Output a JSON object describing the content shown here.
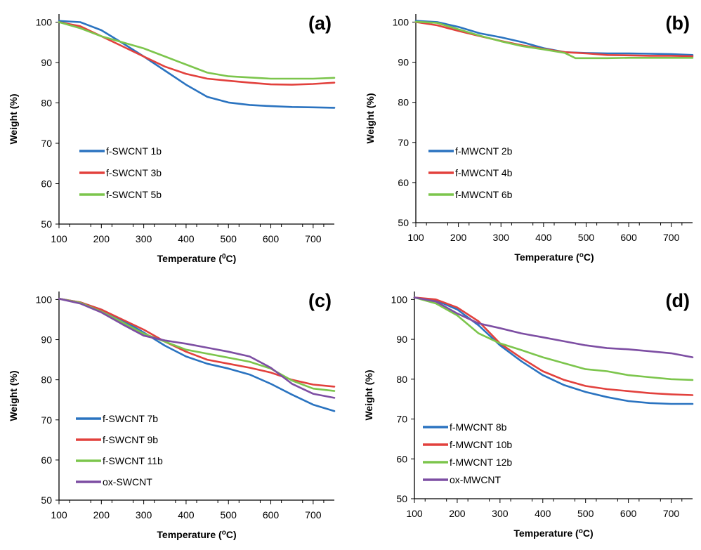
{
  "colors": {
    "blue": "#2a73c0",
    "red": "#e2413d",
    "green": "#7cc54c",
    "purple": "#7d4ea3"
  },
  "chart_data": [
    {
      "type": "line",
      "panel_label": "(a)",
      "xlabel": "Temperature (",
      "xlabel_sup": "0",
      "xlabel_end": "C)",
      "ylabel": "Weight (%)",
      "xlim": [
        100,
        750
      ],
      "ylim": [
        50,
        102
      ],
      "xticks": [
        100,
        200,
        300,
        400,
        500,
        600,
        700
      ],
      "yticks": [
        50,
        60,
        70,
        80,
        90,
        100
      ],
      "grid": false,
      "legend_position": "bottom-left",
      "series": [
        {
          "name": "f-SWCNT 1b",
          "color": "#2a73c0",
          "x": [
            100,
            150,
            200,
            250,
            300,
            350,
            400,
            450,
            500,
            550,
            600,
            650,
            700,
            750
          ],
          "y": [
            100.3,
            100.0,
            98.0,
            94.8,
            91.5,
            88.0,
            84.5,
            81.5,
            80.1,
            79.5,
            79.2,
            79.0,
            78.9,
            78.8
          ]
        },
        {
          "name": "f-SWCNT 3b",
          "color": "#e2413d",
          "x": [
            100,
            150,
            200,
            250,
            300,
            350,
            400,
            450,
            500,
            550,
            600,
            650,
            700,
            750
          ],
          "y": [
            100.0,
            99.0,
            96.5,
            94.0,
            91.5,
            89.0,
            87.2,
            86.0,
            85.5,
            85.0,
            84.6,
            84.5,
            84.7,
            85.0
          ]
        },
        {
          "name": "f-SWCNT 5b",
          "color": "#7cc54c",
          "x": [
            100,
            150,
            200,
            250,
            300,
            350,
            400,
            450,
            500,
            550,
            600,
            650,
            700,
            750
          ],
          "y": [
            100.0,
            98.5,
            96.5,
            95.0,
            93.5,
            91.5,
            89.5,
            87.5,
            86.6,
            86.3,
            86.0,
            86.0,
            86.0,
            86.2
          ]
        }
      ]
    },
    {
      "type": "line",
      "panel_label": "(b)",
      "xlabel": "Temperature (",
      "xlabel_sup": "o",
      "xlabel_end": "C)",
      "ylabel": "Weight (%)",
      "xlim": [
        100,
        750
      ],
      "ylim": [
        50,
        102
      ],
      "xticks": [
        100,
        200,
        300,
        400,
        500,
        600,
        700
      ],
      "yticks": [
        50,
        60,
        70,
        80,
        90,
        100
      ],
      "grid": false,
      "legend_position": "bottom-left",
      "series": [
        {
          "name": "f-MWCNT 2b",
          "color": "#2a73c0",
          "x": [
            100,
            150,
            200,
            250,
            300,
            350,
            400,
            450,
            500,
            550,
            600,
            650,
            700,
            750
          ],
          "y": [
            100.3,
            100.0,
            98.8,
            97.2,
            96.2,
            95.0,
            93.5,
            92.5,
            92.3,
            92.2,
            92.2,
            92.1,
            92.0,
            91.8
          ]
        },
        {
          "name": "f-MWCNT 4b",
          "color": "#e2413d",
          "x": [
            100,
            150,
            200,
            250,
            300,
            350,
            400,
            450,
            500,
            550,
            600,
            650,
            700,
            750
          ],
          "y": [
            100.0,
            99.2,
            97.8,
            96.5,
            95.3,
            94.2,
            93.3,
            92.5,
            92.2,
            91.8,
            91.7,
            91.6,
            91.6,
            91.5
          ]
        },
        {
          "name": "f-MWCNT 6b",
          "color": "#7cc54c",
          "x": [
            100,
            150,
            200,
            250,
            300,
            350,
            400,
            450,
            475,
            500,
            550,
            600,
            650,
            700,
            750
          ],
          "y": [
            100.1,
            99.8,
            98.2,
            96.6,
            95.2,
            94.0,
            93.2,
            92.3,
            91.0,
            91.0,
            91.0,
            91.1,
            91.1,
            91.1,
            91.1
          ]
        }
      ]
    },
    {
      "type": "line",
      "panel_label": "(c)",
      "xlabel": "Temperature (",
      "xlabel_sup": "o",
      "xlabel_end": "C)",
      "ylabel": "Weight (%)",
      "xlim": [
        100,
        750
      ],
      "ylim": [
        50,
        102
      ],
      "xticks": [
        100,
        200,
        300,
        400,
        500,
        600,
        700
      ],
      "yticks": [
        50,
        60,
        70,
        80,
        90,
        100
      ],
      "grid": false,
      "legend_position": "bottom-left",
      "series": [
        {
          "name": "f-SWCNT 7b",
          "color": "#2a73c0",
          "x": [
            100,
            150,
            200,
            250,
            300,
            350,
            400,
            450,
            500,
            550,
            600,
            650,
            700,
            750
          ],
          "y": [
            100.2,
            99.3,
            97.5,
            94.8,
            91.8,
            88.5,
            85.8,
            84.0,
            82.8,
            81.3,
            79.0,
            76.3,
            73.8,
            72.2
          ]
        },
        {
          "name": "f-SWCNT 9b",
          "color": "#e2413d",
          "x": [
            100,
            150,
            200,
            250,
            300,
            350,
            400,
            450,
            500,
            550,
            600,
            650,
            700,
            750
          ],
          "y": [
            100.2,
            99.3,
            97.5,
            95.0,
            92.5,
            89.5,
            87.0,
            85.0,
            84.0,
            83.0,
            81.8,
            80.0,
            78.8,
            78.3
          ]
        },
        {
          "name": "f-SWCNT 11b",
          "color": "#7cc54c",
          "x": [
            100,
            150,
            200,
            250,
            300,
            350,
            400,
            450,
            500,
            550,
            600,
            650,
            700,
            750
          ],
          "y": [
            100.2,
            99.2,
            97.0,
            94.3,
            91.5,
            89.5,
            87.5,
            86.5,
            85.5,
            84.5,
            82.8,
            79.8,
            77.8,
            77.2
          ]
        },
        {
          "name": "ox-SWCNT",
          "color": "#7d4ea3",
          "x": [
            100,
            150,
            200,
            250,
            300,
            350,
            400,
            450,
            500,
            550,
            600,
            650,
            700,
            750
          ],
          "y": [
            100.2,
            99.0,
            96.8,
            93.8,
            91.0,
            89.8,
            89.0,
            88.0,
            87.0,
            85.8,
            83.0,
            79.0,
            76.5,
            75.5
          ]
        }
      ]
    },
    {
      "type": "line",
      "panel_label": "(d)",
      "xlabel": "Temperature (",
      "xlabel_sup": "o",
      "xlabel_end": "C)",
      "ylabel": "Weight (%)",
      "xlim": [
        100,
        750
      ],
      "ylim": [
        50,
        102
      ],
      "xticks": [
        100,
        200,
        300,
        400,
        500,
        600,
        700
      ],
      "yticks": [
        50,
        60,
        70,
        80,
        90,
        100
      ],
      "grid": false,
      "legend_position": "bottom-left",
      "series": [
        {
          "name": "f-MWCNT 8b",
          "color": "#2a73c0",
          "x": [
            100,
            150,
            200,
            250,
            300,
            350,
            400,
            450,
            500,
            550,
            600,
            650,
            700,
            750
          ],
          "y": [
            100.5,
            99.8,
            97.5,
            93.5,
            88.5,
            84.5,
            81.0,
            78.5,
            76.8,
            75.5,
            74.5,
            74.0,
            73.8,
            73.8
          ]
        },
        {
          "name": "f-MWCNT 10b",
          "color": "#e2413d",
          "x": [
            100,
            150,
            200,
            250,
            300,
            350,
            400,
            450,
            500,
            550,
            600,
            650,
            700,
            750
          ],
          "y": [
            100.5,
            100.0,
            98.0,
            94.5,
            89.0,
            85.3,
            82.0,
            79.8,
            78.3,
            77.5,
            77.0,
            76.5,
            76.2,
            76.0
          ]
        },
        {
          "name": "f-MWCNT 12b",
          "color": "#7cc54c",
          "x": [
            100,
            150,
            200,
            250,
            300,
            350,
            400,
            450,
            500,
            550,
            600,
            650,
            700,
            750
          ],
          "y": [
            100.5,
            99.0,
            96.0,
            91.5,
            89.0,
            87.3,
            85.5,
            84.0,
            82.5,
            82.0,
            81.0,
            80.5,
            80.0,
            79.8
          ]
        },
        {
          "name": "ox-MWCNT",
          "color": "#7d4ea3",
          "x": [
            100,
            150,
            200,
            250,
            300,
            350,
            400,
            450,
            500,
            550,
            600,
            650,
            700,
            750
          ],
          "y": [
            100.5,
            99.5,
            96.5,
            94.0,
            92.8,
            91.5,
            90.5,
            89.5,
            88.5,
            87.8,
            87.5,
            87.0,
            86.5,
            85.5
          ]
        }
      ]
    }
  ]
}
